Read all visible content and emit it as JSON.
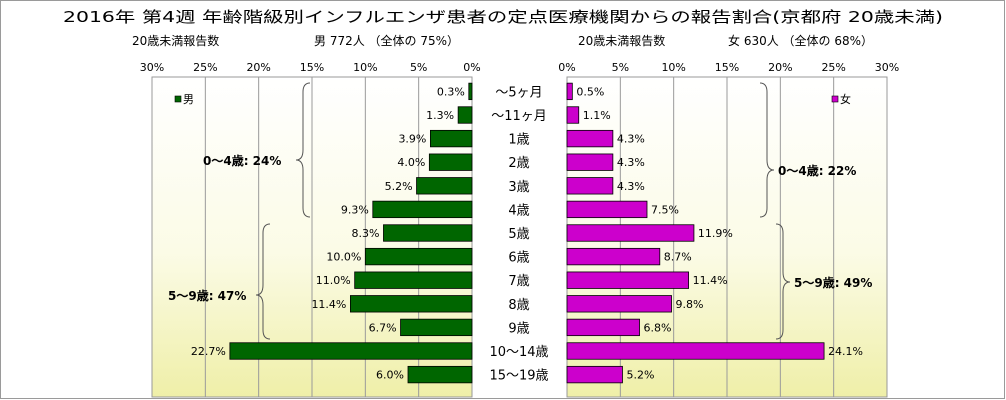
{
  "chart_data": {
    "type": "bar",
    "title": "2016年 第4週 年齢階級別インフルエンザ患者の定点医療機関からの報告割合(京都府 20歳未満)",
    "categories": [
      "～5ヶ月",
      "～11ヶ月",
      "1歳",
      "2歳",
      "3歳",
      "4歳",
      "5歳",
      "6歳",
      "7歳",
      "8歳",
      "9歳",
      "10～14歳",
      "15～19歳"
    ],
    "male": {
      "header_left": "20歳未満報告数",
      "header_right": "男  772人 （全体の  75%）",
      "legend": "男",
      "color": "#006600",
      "values": [
        0.3,
        1.3,
        3.9,
        4.0,
        5.2,
        9.3,
        8.3,
        10.0,
        11.0,
        11.4,
        6.7,
        22.7,
        6.0
      ],
      "value_labels": [
        "0.3%",
        "1.3%",
        "3.9%",
        "4.0%",
        "5.2%",
        "9.3%",
        "8.3%",
        "10.0%",
        "11.0%",
        "11.4%",
        "6.7%",
        "22.7%",
        "6.0%"
      ],
      "axis_ticks": [
        "30%",
        "25%",
        "20%",
        "15%",
        "10%",
        "5%",
        "0%"
      ],
      "group_labels": [
        "0～4歳: 24%",
        "5～9歳: 47%"
      ]
    },
    "female": {
      "header_left": "20歳未満報告数",
      "header_right": "女  630人 （全体の  68%）",
      "legend": "女",
      "color": "#cc00cc",
      "values": [
        0.5,
        1.1,
        4.3,
        4.3,
        4.3,
        7.5,
        11.9,
        8.7,
        11.4,
        9.8,
        6.8,
        24.1,
        5.2
      ],
      "value_labels": [
        "0.5%",
        "1.1%",
        "4.3%",
        "4.3%",
        "4.3%",
        "7.5%",
        "11.9%",
        "8.7%",
        "11.4%",
        "9.8%",
        "6.8%",
        "24.1%",
        "5.2%"
      ],
      "axis_ticks": [
        "0%",
        "5%",
        "10%",
        "15%",
        "20%",
        "25%",
        "30%"
      ],
      "group_labels": [
        "0～4歳: 22%",
        "5～9歳: 49%"
      ]
    },
    "xlim": [
      0,
      30
    ],
    "grid": true
  }
}
